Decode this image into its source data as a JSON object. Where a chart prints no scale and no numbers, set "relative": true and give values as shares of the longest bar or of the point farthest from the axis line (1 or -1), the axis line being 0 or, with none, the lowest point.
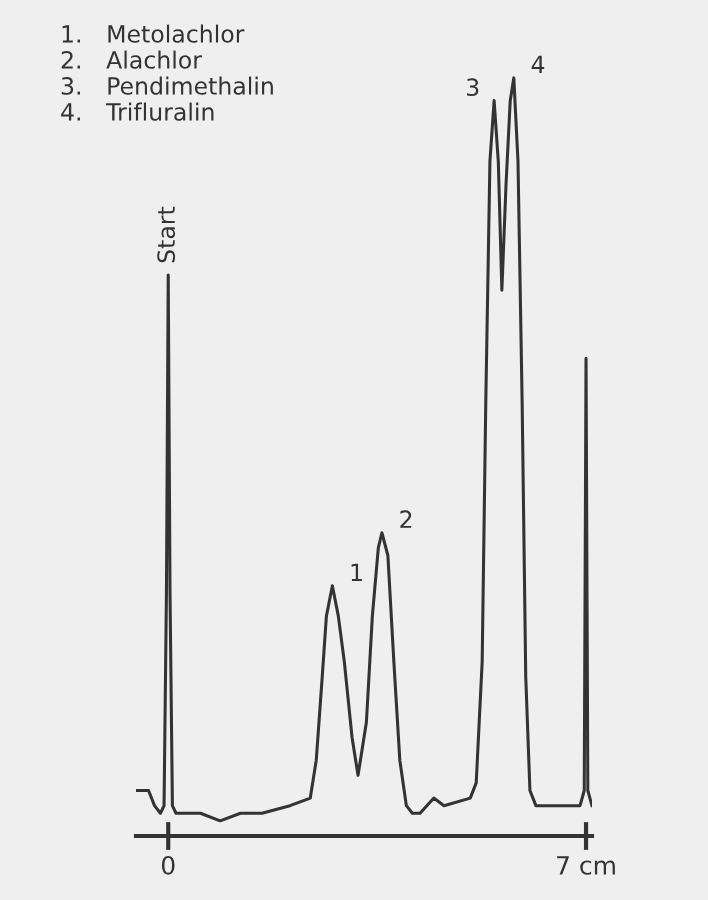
{
  "chart_data": {
    "type": "line",
    "relative": true,
    "color": "#333333",
    "marker": "none",
    "line_style": "solid",
    "grid": false,
    "legend": false,
    "tick_labels": "x",
    "x": [
      -0.54,
      -0.33,
      -0.23,
      -0.13,
      -0.07,
      -0.03,
      0,
      0.03,
      0.07,
      0.13,
      0.54,
      0.87,
      1.21,
      1.57,
      2.04,
      2.38,
      2.48,
      2.58,
      2.65,
      2.75,
      2.85,
      2.95,
      3.08,
      3.18,
      3.32,
      3.42,
      3.52,
      3.58,
      3.68,
      3.78,
      3.88,
      3.99,
      4.09,
      4.22,
      4.45,
      4.62,
      5.06,
      5.16,
      5.26,
      5.32,
      5.39,
      5.46,
      5.53,
      5.59,
      5.66,
      5.73,
      5.79,
      5.86,
      5.93,
      5.99,
      6.06,
      6.16,
      6.56,
      6.9,
      6.97,
      7.0,
      7.03,
      7.1
    ],
    "values": [
      0.06,
      0.06,
      0.04,
      0.03,
      0.04,
      0.32,
      0.74,
      0.32,
      0.04,
      0.03,
      0.03,
      0.02,
      0.03,
      0.03,
      0.04,
      0.05,
      0.1,
      0.21,
      0.29,
      0.33,
      0.29,
      0.23,
      0.13,
      0.08,
      0.15,
      0.29,
      0.38,
      0.4,
      0.37,
      0.23,
      0.1,
      0.04,
      0.03,
      0.03,
      0.05,
      0.04,
      0.05,
      0.07,
      0.23,
      0.57,
      0.89,
      0.97,
      0.89,
      0.72,
      0.86,
      0.97,
      1.0,
      0.89,
      0.57,
      0.21,
      0.06,
      0.04,
      0.04,
      0.04,
      0.06,
      0.63,
      0.06,
      0.04
    ],
    "xlim": [
      -0.54,
      7.1
    ],
    "xticks": [
      {
        "value": 0,
        "label": "0"
      },
      {
        "value": 7,
        "label": "7 cm"
      }
    ],
    "annotations": [
      "1. Metolachlor",
      "2. Alachlor",
      "3. Pendimethalin",
      "4. Trifluralin",
      {
        "text": "Start",
        "x": 0,
        "y": 0.74
      },
      {
        "text": "1",
        "x": 2.75,
        "y": 0.33
      },
      {
        "text": "2",
        "x": 3.58,
        "y": 0.4
      },
      {
        "text": "3",
        "x": 5.46,
        "y": 0.97
      },
      {
        "text": "4",
        "x": 5.79,
        "y": 1.0
      }
    ]
  }
}
